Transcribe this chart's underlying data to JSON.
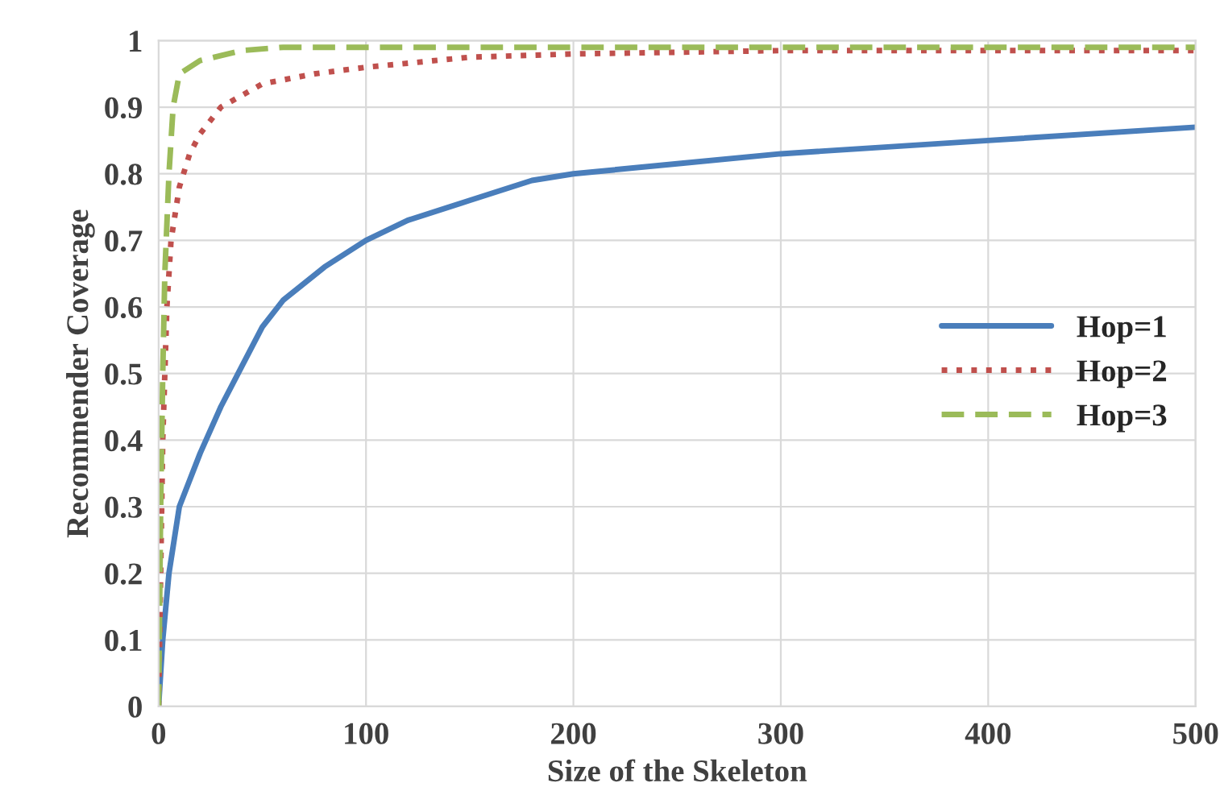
{
  "chart_data": {
    "type": "line",
    "xlabel": "Size of the Skeleton",
    "ylabel": "Recommender Coverage",
    "xlim": [
      0,
      500
    ],
    "xticks": [
      0,
      100,
      200,
      300,
      400,
      500
    ],
    "ylim": [
      0,
      1
    ],
    "yticks": [
      0,
      0.1,
      0.2,
      0.3,
      0.4,
      0.5,
      0.6,
      0.7,
      0.8,
      0.9,
      1
    ],
    "grid": true,
    "legend": "right",
    "series": [
      {
        "name": "Hop=1",
        "color": "#4a7ebb",
        "line_style": "solid",
        "x": [
          0,
          2,
          5,
          10,
          20,
          30,
          40,
          50,
          60,
          80,
          100,
          120,
          150,
          180,
          200,
          250,
          300,
          400,
          500
        ],
        "values": [
          0,
          0.1,
          0.2,
          0.3,
          0.38,
          0.45,
          0.51,
          0.57,
          0.61,
          0.66,
          0.7,
          0.73,
          0.76,
          0.79,
          0.8,
          0.815,
          0.83,
          0.85,
          0.87
        ]
      },
      {
        "name": "Hop=2",
        "color": "#c0504d",
        "line_style": "dotted",
        "x": [
          0,
          1,
          2,
          4,
          6,
          10,
          15,
          20,
          30,
          50,
          75,
          100,
          150,
          200,
          300,
          500
        ],
        "values": [
          0,
          0.2,
          0.4,
          0.6,
          0.7,
          0.78,
          0.83,
          0.86,
          0.9,
          0.935,
          0.95,
          0.96,
          0.975,
          0.98,
          0.985,
          0.985
        ]
      },
      {
        "name": "Hop=3",
        "color": "#9bbb59",
        "line_style": "dashed",
        "x": [
          0,
          1,
          2,
          3,
          5,
          7,
          10,
          20,
          40,
          60,
          500
        ],
        "values": [
          0,
          0.3,
          0.5,
          0.65,
          0.8,
          0.9,
          0.95,
          0.97,
          0.985,
          0.99,
          0.99
        ]
      }
    ]
  }
}
